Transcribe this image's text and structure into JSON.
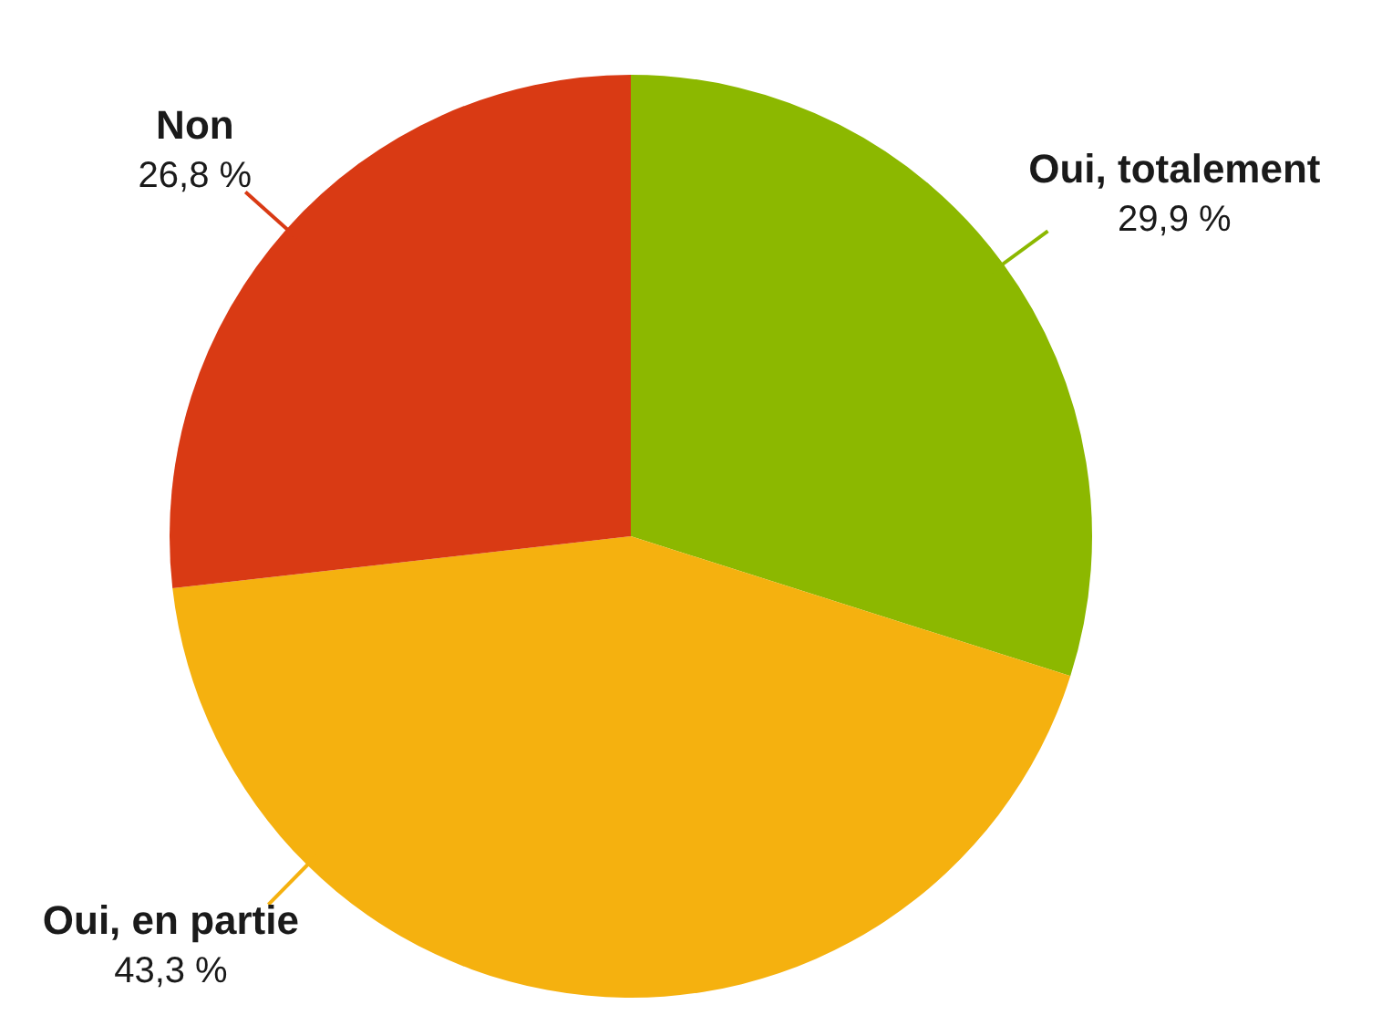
{
  "chart_data": {
    "type": "pie",
    "categories": [
      "Oui, totalement",
      "Oui, en partie",
      "Non"
    ],
    "values": [
      29.9,
      43.3,
      26.8
    ],
    "colors": [
      "#8cb800",
      "#f5b10f",
      "#d93a14"
    ],
    "value_labels": [
      "29,9 %",
      "43,3 %",
      "26,8 %"
    ],
    "legend": false
  }
}
